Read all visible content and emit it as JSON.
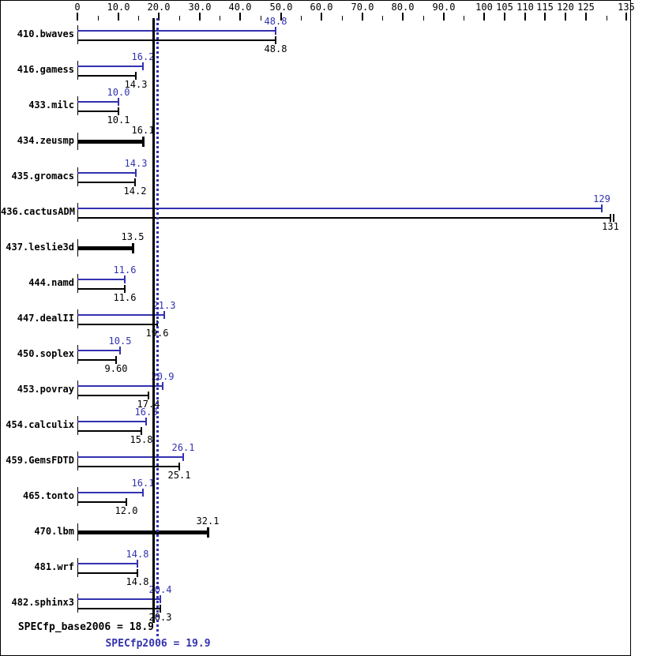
{
  "colors": {
    "peak": "#3232b0",
    "base": "#000000",
    "background": "#ffffff",
    "border": "#000000"
  },
  "summary": {
    "base_text": "SPECfp_base2006 = 18.9",
    "base_value": 18.9,
    "peak_text": "SPECfp2006 = 19.9",
    "peak_value": 19.9
  },
  "chart_data": {
    "type": "bar",
    "orientation": "horizontal",
    "title": "",
    "xlabel": "",
    "ylabel": "",
    "xlim": [
      0,
      135
    ],
    "grid": false,
    "legend_position": "none",
    "categories": [
      "410.bwaves",
      "416.gamess",
      "433.milc",
      "434.zeusmp",
      "435.gromacs",
      "436.cactusADM",
      "437.leslie3d",
      "444.namd",
      "447.dealII",
      "450.soplex",
      "453.povray",
      "454.calculix",
      "459.GemsFDTD",
      "465.tonto",
      "470.lbm",
      "481.wrf",
      "482.sphinx3"
    ],
    "series": [
      {
        "name": "peak (SPECfp2006)",
        "color_key": "peak",
        "values": [
          48.8,
          16.2,
          10.0,
          null,
          14.3,
          129,
          null,
          11.6,
          21.3,
          10.5,
          20.9,
          16.8,
          26.1,
          16.1,
          null,
          14.8,
          20.4
        ],
        "labels": [
          "48.8",
          "16.2",
          "10.0",
          null,
          "14.3",
          "129",
          null,
          "11.6",
          "21.3",
          "10.5",
          "20.9",
          "16.8",
          "26.1",
          "16.1",
          null,
          "14.8",
          "20.4"
        ]
      },
      {
        "name": "base (SPECfp_base2006)",
        "color_key": "base",
        "values": [
          48.8,
          14.3,
          10.1,
          16.1,
          14.2,
          131,
          13.5,
          11.6,
          19.6,
          9.6,
          17.4,
          15.8,
          25.1,
          12.0,
          32.1,
          14.8,
          20.3
        ],
        "labels": [
          "48.8",
          "14.3",
          "10.1",
          "16.1",
          "14.2",
          "131",
          "13.5",
          "11.6",
          "19.6",
          "9.60",
          "17.4",
          "15.8",
          "25.1",
          "12.0",
          "32.1",
          "14.8",
          "20.3"
        ]
      }
    ],
    "base_extra_caps": [
      {
        "category_index": 5,
        "value": 131.8
      }
    ],
    "axis_ticks": {
      "major": [
        {
          "value": 0,
          "label": "0"
        },
        {
          "value": 10,
          "label": "10.0"
        },
        {
          "value": 20,
          "label": "20.0"
        },
        {
          "value": 30,
          "label": "30.0"
        },
        {
          "value": 40,
          "label": "40.0"
        },
        {
          "value": 50,
          "label": "50.0"
        },
        {
          "value": 60,
          "label": "60.0"
        },
        {
          "value": 70,
          "label": "70.0"
        },
        {
          "value": 80,
          "label": "80.0"
        },
        {
          "value": 90,
          "label": "90.0"
        },
        {
          "value": 100,
          "label": "100"
        },
        {
          "value": 105,
          "label": "105"
        },
        {
          "value": 110,
          "label": "110"
        },
        {
          "value": 115,
          "label": "115"
        },
        {
          "value": 120,
          "label": "120"
        },
        {
          "value": 125,
          "label": "125"
        },
        {
          "value": 135,
          "label": "135"
        }
      ],
      "minor": [
        5,
        15,
        25,
        35,
        45,
        55,
        65,
        75,
        85,
        95,
        130
      ]
    },
    "reference_lines": [
      {
        "value": 18.9,
        "style": "solid",
        "color_key": "base",
        "label": "SPECfp_base2006 = 18.9"
      },
      {
        "value": 19.9,
        "style": "dotted",
        "color_key": "peak",
        "label": "SPECfp2006 = 19.9"
      }
    ]
  }
}
